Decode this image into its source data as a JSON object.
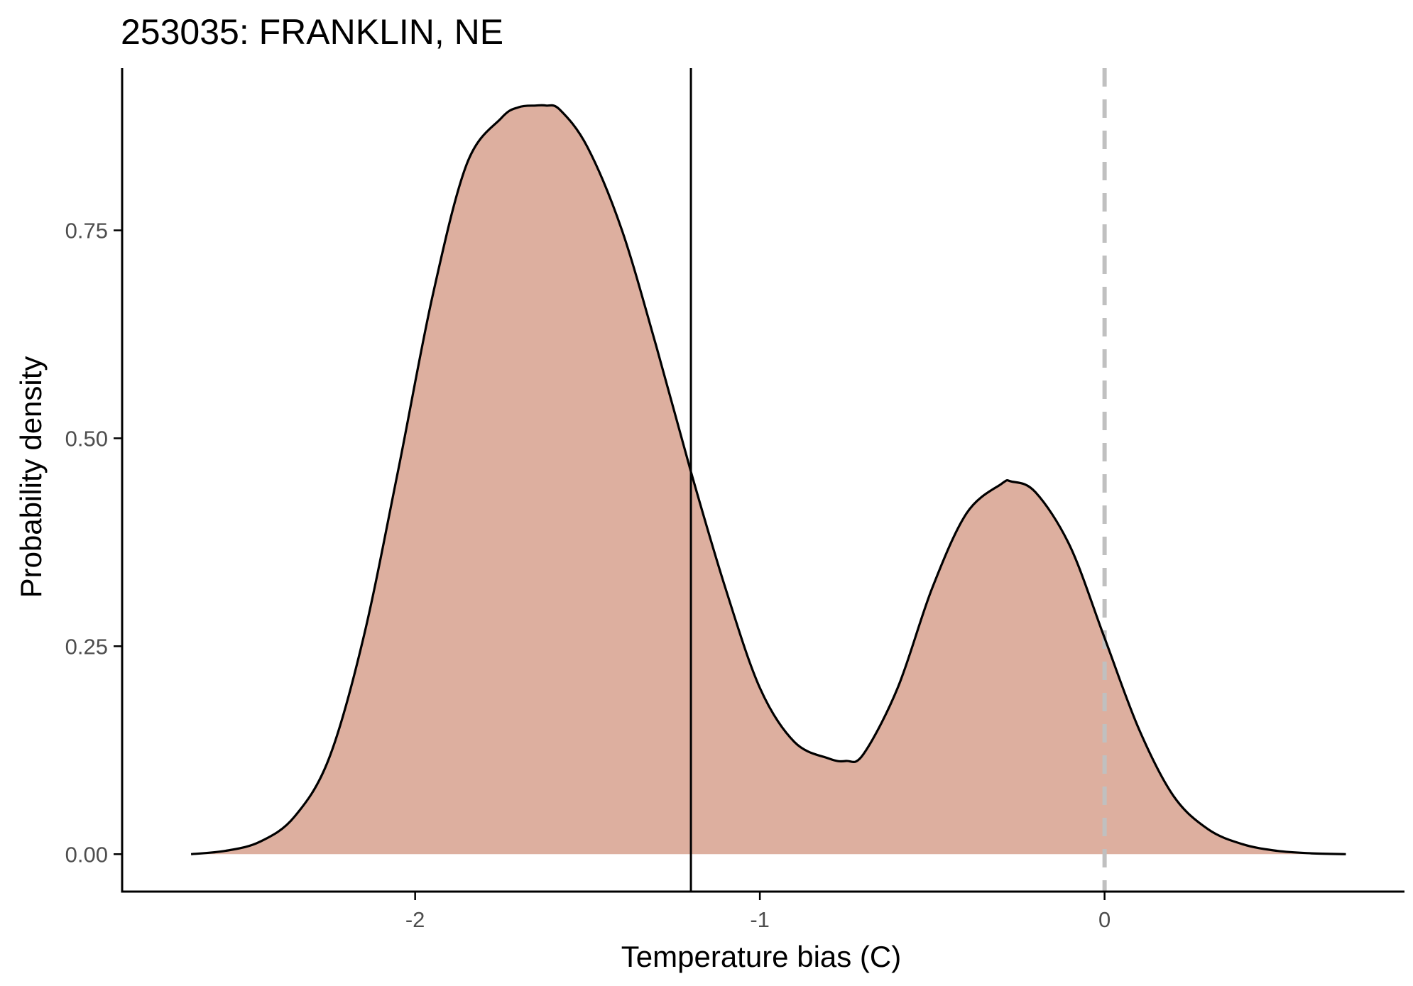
{
  "chart_data": {
    "type": "area",
    "title": "253035: FRANKLIN, NE",
    "xlabel": "Temperature bias (C)",
    "ylabel": "Probability density",
    "xlim": [
      -2.85,
      0.87
    ],
    "ylim": [
      -0.045,
      0.945
    ],
    "xticks": [
      -2,
      -1,
      0
    ],
    "xtick_labels": [
      "-2",
      "-1",
      "0"
    ],
    "yticks": [
      0,
      0.25,
      0.5,
      0.75
    ],
    "ytick_labels": [
      "0.00",
      "0.25",
      "0.50",
      "0.75"
    ],
    "grid": false,
    "legend": "none",
    "series": [
      {
        "x": [
          -2.65,
          -2.55,
          -2.45,
          -2.35,
          -2.25,
          -2.15,
          -2.05,
          -1.95,
          -1.85,
          -1.75,
          -1.7,
          -1.65,
          -1.62,
          -1.58,
          -1.5,
          -1.4,
          -1.3,
          -1.2,
          -1.1,
          -1.0,
          -0.9,
          -0.8,
          -0.75,
          -0.7,
          -0.6,
          -0.5,
          -0.4,
          -0.3,
          -0.27,
          -0.2,
          -0.1,
          0.0,
          0.1,
          0.2,
          0.3,
          0.4,
          0.5,
          0.6,
          0.7
        ],
        "y": [
          0.0,
          0.004,
          0.015,
          0.045,
          0.115,
          0.26,
          0.46,
          0.67,
          0.83,
          0.885,
          0.898,
          0.9,
          0.9,
          0.895,
          0.85,
          0.75,
          0.61,
          0.46,
          0.32,
          0.2,
          0.135,
          0.115,
          0.112,
          0.12,
          0.2,
          0.32,
          0.41,
          0.445,
          0.448,
          0.435,
          0.37,
          0.26,
          0.15,
          0.07,
          0.03,
          0.012,
          0.004,
          0.001,
          0.0
        ]
      }
    ],
    "vlines": [
      {
        "x": -1.2,
        "style": "solid",
        "color": "#000000"
      },
      {
        "x": 0.0,
        "style": "dashed",
        "color": "#c0c0c0"
      }
    ],
    "colors": {
      "fill": "#ddaf9f",
      "curve": "#000000",
      "axis": "#000000",
      "tick_label": "#4d4d4d"
    }
  }
}
